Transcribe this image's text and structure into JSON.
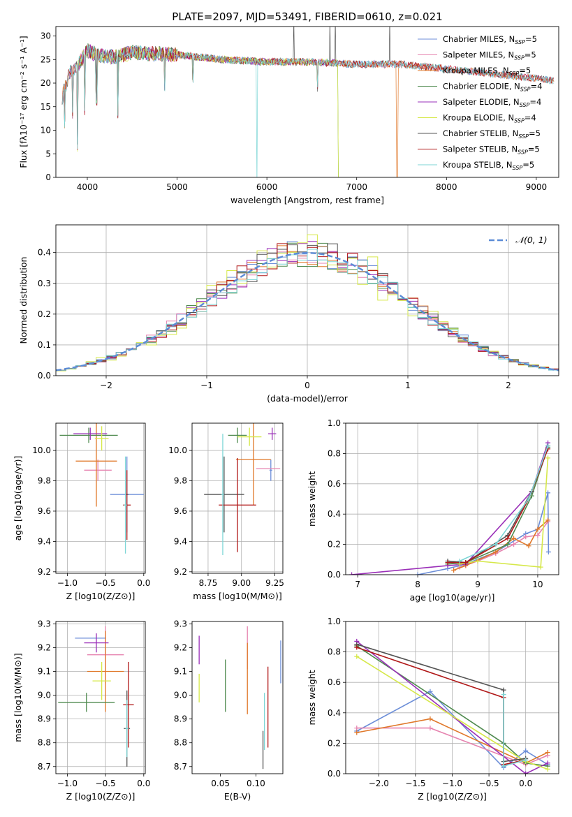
{
  "title": "PLATE=2097, MJD=53491, FIBERID=0610, z=0.021",
  "legend_spec": [
    {
      "label": "Chabrier MILES, N",
      "sub": "SSP",
      "tail": "=5",
      "color": "#6c8ed8"
    },
    {
      "label": "Salpeter MILES, N",
      "sub": "SSP",
      "tail": "=5",
      "color": "#e684b0"
    },
    {
      "label": "Kroupa MILES, N",
      "sub": "SSP",
      "tail": "=5",
      "color": "#e0782a"
    },
    {
      "label": "Chabrier ELODIE, N",
      "sub": "SSP",
      "tail": "=4",
      "color": "#4f8a4f"
    },
    {
      "label": "Salpeter ELODIE, N",
      "sub": "SSP",
      "tail": "=4",
      "color": "#9a2fb8"
    },
    {
      "label": "Kroupa ELODIE, N",
      "sub": "SSP",
      "tail": "=4",
      "color": "#d6e84a"
    },
    {
      "label": "Chabrier STELIB, N",
      "sub": "SSP",
      "tail": "=5",
      "color": "#555555"
    },
    {
      "label": "Salpeter STELIB, N",
      "sub": "SSP",
      "tail": "=5",
      "color": "#b01818"
    },
    {
      "label": "Kroupa STELIB, N",
      "sub": "SSP",
      "tail": "=5",
      "color": "#7dd6d6"
    }
  ],
  "chart_data": [
    {
      "id": "spectrum",
      "type": "line",
      "xlabel": "wavelength [Angstrom, rest frame]",
      "ylabel": "Flux [fλ10⁻¹⁷ erg cm⁻² s⁻¹ A⁻¹]",
      "xlim": [
        3650,
        9250
      ],
      "ylim": [
        0,
        32
      ],
      "xticks": [
        4000,
        5000,
        6000,
        7000,
        8000,
        9000
      ],
      "yticks": [
        0,
        5,
        10,
        15,
        20,
        25,
        30
      ],
      "grid": false,
      "legend_position": "top-right",
      "continuum": [
        [
          3720,
          17
        ],
        [
          3800,
          22
        ],
        [
          3900,
          24
        ],
        [
          4000,
          27
        ],
        [
          4100,
          26
        ],
        [
          4300,
          25.5
        ],
        [
          4500,
          26.5
        ],
        [
          5000,
          26
        ],
        [
          5500,
          25
        ],
        [
          6000,
          24.5
        ],
        [
          6500,
          24.5
        ],
        [
          7000,
          24
        ],
        [
          7500,
          24
        ],
        [
          8000,
          23
        ],
        [
          8500,
          22
        ],
        [
          9000,
          21
        ],
        [
          9200,
          20.5
        ]
      ],
      "spikes": [
        [
          3750,
          11
        ],
        [
          3835,
          13
        ],
        [
          3890,
          6
        ],
        [
          3970,
          14
        ],
        [
          4102,
          16
        ],
        [
          4340,
          13
        ],
        [
          4862,
          19
        ],
        [
          5175,
          21
        ],
        [
          5890,
          0
        ],
        [
          6563,
          19
        ],
        [
          6800,
          0
        ],
        [
          7450,
          0
        ],
        [
          6300,
          33
        ],
        [
          6700,
          33
        ],
        [
          6760,
          33
        ],
        [
          7370,
          33
        ]
      ]
    },
    {
      "id": "residual_hist",
      "type": "histogram",
      "xlabel": "(data-model)/error",
      "ylabel": "Normed distribution",
      "xlim": [
        -2.5,
        2.5
      ],
      "ylim": [
        0,
        0.49
      ],
      "xticks": [
        -2,
        -1,
        0,
        1,
        2
      ],
      "yticks": [
        0,
        0.1,
        0.2,
        0.3,
        0.4
      ],
      "grid": true,
      "legend_position": "top-right",
      "reference": {
        "label": "𝒩(0, 1)",
        "color": "#5b8bd6"
      },
      "bin_width": 0.1
    },
    {
      "id": "age_vs_Z",
      "type": "errorbar",
      "xlabel": "Z [log10(Z/Z⊙)]",
      "ylabel": "age [log10(age/yr)]",
      "xlim": [
        -1.15,
        0.02
      ],
      "ylim": [
        9.19,
        10.18
      ],
      "xticks": [
        -1.0,
        -0.5,
        0.0
      ],
      "yticks": [
        9.2,
        9.4,
        9.6,
        9.8,
        10.0
      ],
      "grid": true,
      "points": [
        {
          "x": -0.22,
          "y": 9.71,
          "xerr": 0.22,
          "yerr": 0.25,
          "color": "#6c8ed8"
        },
        {
          "x": -0.6,
          "y": 9.87,
          "xerr": 0.18,
          "yerr": 0.07,
          "color": "#e684b0"
        },
        {
          "x": -0.62,
          "y": 9.93,
          "xerr": 0.27,
          "yerr": 0.3,
          "color": "#e0782a"
        },
        {
          "x": -0.72,
          "y": 10.1,
          "xerr": 0.38,
          "yerr": 0.05,
          "color": "#4f8a4f"
        },
        {
          "x": -0.7,
          "y": 10.11,
          "xerr": 0.22,
          "yerr": 0.04,
          "color": "#9a2fb8"
        },
        {
          "x": -0.55,
          "y": 10.08,
          "xerr": 0.09,
          "yerr": 0.08,
          "color": "#d6e84a"
        },
        {
          "x": -0.22,
          "y": 9.71,
          "xerr": 0.02,
          "yerr": 0.0,
          "color": "#555555"
        },
        {
          "x": -0.22,
          "y": 9.64,
          "xerr": 0.05,
          "yerr": 0.23,
          "color": "#b01818"
        },
        {
          "x": -0.24,
          "y": 9.64,
          "xerr": 0.02,
          "yerr": 0.32,
          "color": "#7dd6d6"
        }
      ]
    },
    {
      "id": "age_vs_mass",
      "type": "errorbar",
      "xlabel": "mass [log10(M/M⊙)]",
      "ylabel": "",
      "xlim": [
        8.63,
        9.31
      ],
      "ylim": [
        9.19,
        10.18
      ],
      "xticks": [
        8.75,
        9.0,
        9.25
      ],
      "yticks": [
        9.2,
        9.4,
        9.6,
        9.8,
        10.0
      ],
      "grid": true,
      "points": [
        {
          "x": 9.22,
          "y": 9.87,
          "xerr": 0.01,
          "yerr": 0.07,
          "color": "#6c8ed8"
        },
        {
          "x": 9.2,
          "y": 9.88,
          "xerr": 0.09,
          "yerr": 0.0,
          "color": "#e684b0"
        },
        {
          "x": 9.09,
          "y": 9.94,
          "xerr": 0.13,
          "yerr": 0.3,
          "color": "#e0782a"
        },
        {
          "x": 8.97,
          "y": 10.1,
          "xerr": 0.07,
          "yerr": 0.05,
          "color": "#4f8a4f"
        },
        {
          "x": 9.23,
          "y": 10.11,
          "xerr": 0.03,
          "yerr": 0.04,
          "color": "#9a2fb8"
        },
        {
          "x": 9.06,
          "y": 10.09,
          "xerr": 0.09,
          "yerr": 0.06,
          "color": "#d6e84a"
        },
        {
          "x": 8.87,
          "y": 9.71,
          "xerr": 0.15,
          "yerr": 0.25,
          "color": "#555555"
        },
        {
          "x": 8.97,
          "y": 9.64,
          "xerr": 0.14,
          "yerr": 0.31,
          "color": "#b01818"
        },
        {
          "x": 8.86,
          "y": 9.71,
          "xerr": 0.01,
          "yerr": 0.4,
          "color": "#7dd6d6"
        }
      ]
    },
    {
      "id": "mass_weight_vs_age",
      "type": "line",
      "xlabel": "age [log10(age/yr)]",
      "ylabel": "mass weight",
      "xlim": [
        6.8,
        10.35
      ],
      "ylim": [
        0,
        1.0
      ],
      "xticks": [
        7,
        8,
        9,
        10
      ],
      "yticks": [
        0.0,
        0.2,
        0.4,
        0.6,
        0.8,
        1.0
      ],
      "grid": true,
      "series": [
        {
          "color": "#6c8ed8",
          "x": [
            8.0,
            8.5,
            8.8,
            9.3,
            9.8,
            10.0,
            10.17,
            10.18
          ],
          "y": [
            0.0,
            0.04,
            0.07,
            0.15,
            0.27,
            0.3,
            0.54,
            0.15
          ]
        },
        {
          "color": "#e684b0",
          "x": [
            8.7,
            9.0,
            9.3,
            9.6,
            9.8,
            10.0,
            10.17
          ],
          "y": [
            0.05,
            0.09,
            0.14,
            0.2,
            0.25,
            0.26,
            0.35
          ]
        },
        {
          "color": "#e0782a",
          "x": [
            8.6,
            8.8,
            9.3,
            9.6,
            9.85,
            10.0,
            10.17
          ],
          "y": [
            0.03,
            0.06,
            0.15,
            0.24,
            0.19,
            0.3,
            0.36
          ]
        },
        {
          "color": "#4f8a4f",
          "x": [
            8.5,
            8.8,
            9.5,
            9.9,
            10.17
          ],
          "y": [
            0.07,
            0.08,
            0.2,
            0.52,
            0.84
          ]
        },
        {
          "color": "#9a2fb8",
          "x": [
            6.9,
            8.5,
            8.8,
            9.9,
            10.17
          ],
          "y": [
            0.0,
            0.06,
            0.07,
            0.55,
            0.87
          ]
        },
        {
          "color": "#d6e84a",
          "x": [
            8.7,
            9.0,
            10.05,
            10.17
          ],
          "y": [
            0.07,
            0.09,
            0.05,
            0.77
          ]
        },
        {
          "color": "#555555",
          "x": [
            8.5,
            8.8,
            9.5,
            9.9,
            10.17
          ],
          "y": [
            0.09,
            0.08,
            0.26,
            0.55,
            0.85
          ]
        },
        {
          "color": "#b01818",
          "x": [
            8.5,
            8.8,
            9.5,
            9.85,
            10.17
          ],
          "y": [
            0.08,
            0.08,
            0.24,
            0.5,
            0.83
          ]
        },
        {
          "color": "#7dd6d6",
          "x": [
            8.7,
            9.3,
            9.85,
            10.17
          ],
          "y": [
            0.09,
            0.2,
            0.5,
            0.85
          ]
        }
      ]
    },
    {
      "id": "mass_vs_Z",
      "type": "errorbar",
      "xlabel": "Z [log10(Z/Z⊙)]",
      "ylabel": "mass [log10(M/M⊙)]",
      "xlim": [
        -1.15,
        0.02
      ],
      "ylim": [
        8.67,
        9.31
      ],
      "xticks": [
        -1.0,
        -0.5,
        0.0
      ],
      "yticks": [
        8.7,
        8.8,
        8.9,
        9.0,
        9.1,
        9.2,
        9.3
      ],
      "grid": true,
      "points": [
        {
          "x": -0.7,
          "y": 9.24,
          "xerr": 0.2,
          "yerr": 0.0,
          "color": "#6c8ed8"
        },
        {
          "x": -0.5,
          "y": 9.17,
          "xerr": 0.24,
          "yerr": 0.12,
          "color": "#e684b0"
        },
        {
          "x": -0.5,
          "y": 9.1,
          "xerr": 0.24,
          "yerr": 0.17,
          "color": "#e0782a"
        },
        {
          "x": -0.75,
          "y": 8.97,
          "xerr": 0.37,
          "yerr": 0.04,
          "color": "#4f8a4f"
        },
        {
          "x": -0.62,
          "y": 9.22,
          "xerr": 0.16,
          "yerr": 0.04,
          "color": "#9a2fb8"
        },
        {
          "x": -0.55,
          "y": 9.06,
          "xerr": 0.12,
          "yerr": 0.08,
          "color": "#d6e84a"
        },
        {
          "x": -0.22,
          "y": 8.86,
          "xerr": 0.04,
          "yerr": 0.16,
          "color": "#555555"
        },
        {
          "x": -0.2,
          "y": 8.96,
          "xerr": 0.07,
          "yerr": 0.18,
          "color": "#b01818"
        },
        {
          "x": -0.22,
          "y": 8.86,
          "xerr": 0.02,
          "yerr": 0.12,
          "color": "#7dd6d6"
        }
      ]
    },
    {
      "id": "mass_vs_ebv",
      "type": "errorbar",
      "xlabel": "E(B-V)",
      "ylabel": "",
      "xlim": [
        0.01,
        0.138
      ],
      "ylim": [
        8.67,
        9.31
      ],
      "xticks": [
        0.05,
        0.1
      ],
      "yticks": [
        8.7,
        8.8,
        8.9,
        9.0,
        9.1,
        9.2,
        9.3
      ],
      "grid": false,
      "points": [
        {
          "x": 0.135,
          "y": 9.14,
          "xerr": 0,
          "yerr": 0.09,
          "color": "#6c8ed8"
        },
        {
          "x": 0.088,
          "y": 9.2,
          "xerr": 0,
          "yerr": 0.09,
          "color": "#e684b0"
        },
        {
          "x": 0.088,
          "y": 9.07,
          "xerr": 0,
          "yerr": 0.15,
          "color": "#e0782a"
        },
        {
          "x": 0.057,
          "y": 9.04,
          "xerr": 0,
          "yerr": 0.11,
          "color": "#4f8a4f"
        },
        {
          "x": 0.02,
          "y": 9.19,
          "xerr": 0,
          "yerr": 0.06,
          "color": "#9a2fb8"
        },
        {
          "x": 0.02,
          "y": 9.03,
          "xerr": 0,
          "yerr": 0.06,
          "color": "#d6e84a"
        },
        {
          "x": 0.11,
          "y": 8.77,
          "xerr": 0,
          "yerr": 0.08,
          "color": "#555555"
        },
        {
          "x": 0.117,
          "y": 8.95,
          "xerr": 0,
          "yerr": 0.17,
          "color": "#b01818"
        },
        {
          "x": 0.112,
          "y": 8.89,
          "xerr": 0,
          "yerr": 0.12,
          "color": "#7dd6d6"
        }
      ]
    },
    {
      "id": "mass_weight_vs_Z",
      "type": "line",
      "xlabel": "Z [log10(Z/Z⊙)]",
      "ylabel": "mass weight",
      "xlim": [
        -2.45,
        0.45
      ],
      "ylim": [
        0,
        1.0
      ],
      "xticks": [
        -2.0,
        -1.5,
        -1.0,
        -0.5,
        0.0
      ],
      "yticks": [
        0.0,
        0.2,
        0.4,
        0.6,
        0.8,
        1.0
      ],
      "grid": true,
      "series": [
        {
          "color": "#6c8ed8",
          "x": [
            -2.3,
            -1.3,
            -0.3,
            0.0,
            0.3
          ],
          "y": [
            0.28,
            0.54,
            0.04,
            0.15,
            0.06
          ]
        },
        {
          "color": "#e684b0",
          "x": [
            -2.3,
            -1.3,
            0.0,
            0.3
          ],
          "y": [
            0.3,
            0.3,
            0.06,
            0.12
          ]
        },
        {
          "color": "#e0782a",
          "x": [
            -2.3,
            -1.3,
            0.0,
            0.3
          ],
          "y": [
            0.27,
            0.36,
            0.07,
            0.14
          ]
        },
        {
          "color": "#4f8a4f",
          "x": [
            -2.3,
            -0.3,
            0.0,
            0.3
          ],
          "y": [
            0.84,
            0.2,
            0.07,
            0.05
          ]
        },
        {
          "color": "#9a2fb8",
          "x": [
            -2.3,
            0.0,
            0.3
          ],
          "y": [
            0.87,
            0.0,
            0.07
          ]
        },
        {
          "color": "#d6e84a",
          "x": [
            -2.3,
            0.0,
            0.3
          ],
          "y": [
            0.77,
            0.08,
            0.03
          ]
        },
        {
          "color": "#555555",
          "x": [
            -2.3,
            -0.3,
            -0.3,
            0.0
          ],
          "y": [
            0.85,
            0.55,
            0.08,
            0.1
          ]
        },
        {
          "color": "#b01818",
          "x": [
            -2.3,
            -0.3,
            -0.3,
            0.0
          ],
          "y": [
            0.83,
            0.5,
            0.06,
            0.09
          ]
        },
        {
          "color": "#7dd6d6",
          "x": [
            -0.3,
            -0.3,
            0.0
          ],
          "y": [
            0.52,
            0.05,
            0.09
          ]
        }
      ]
    }
  ]
}
